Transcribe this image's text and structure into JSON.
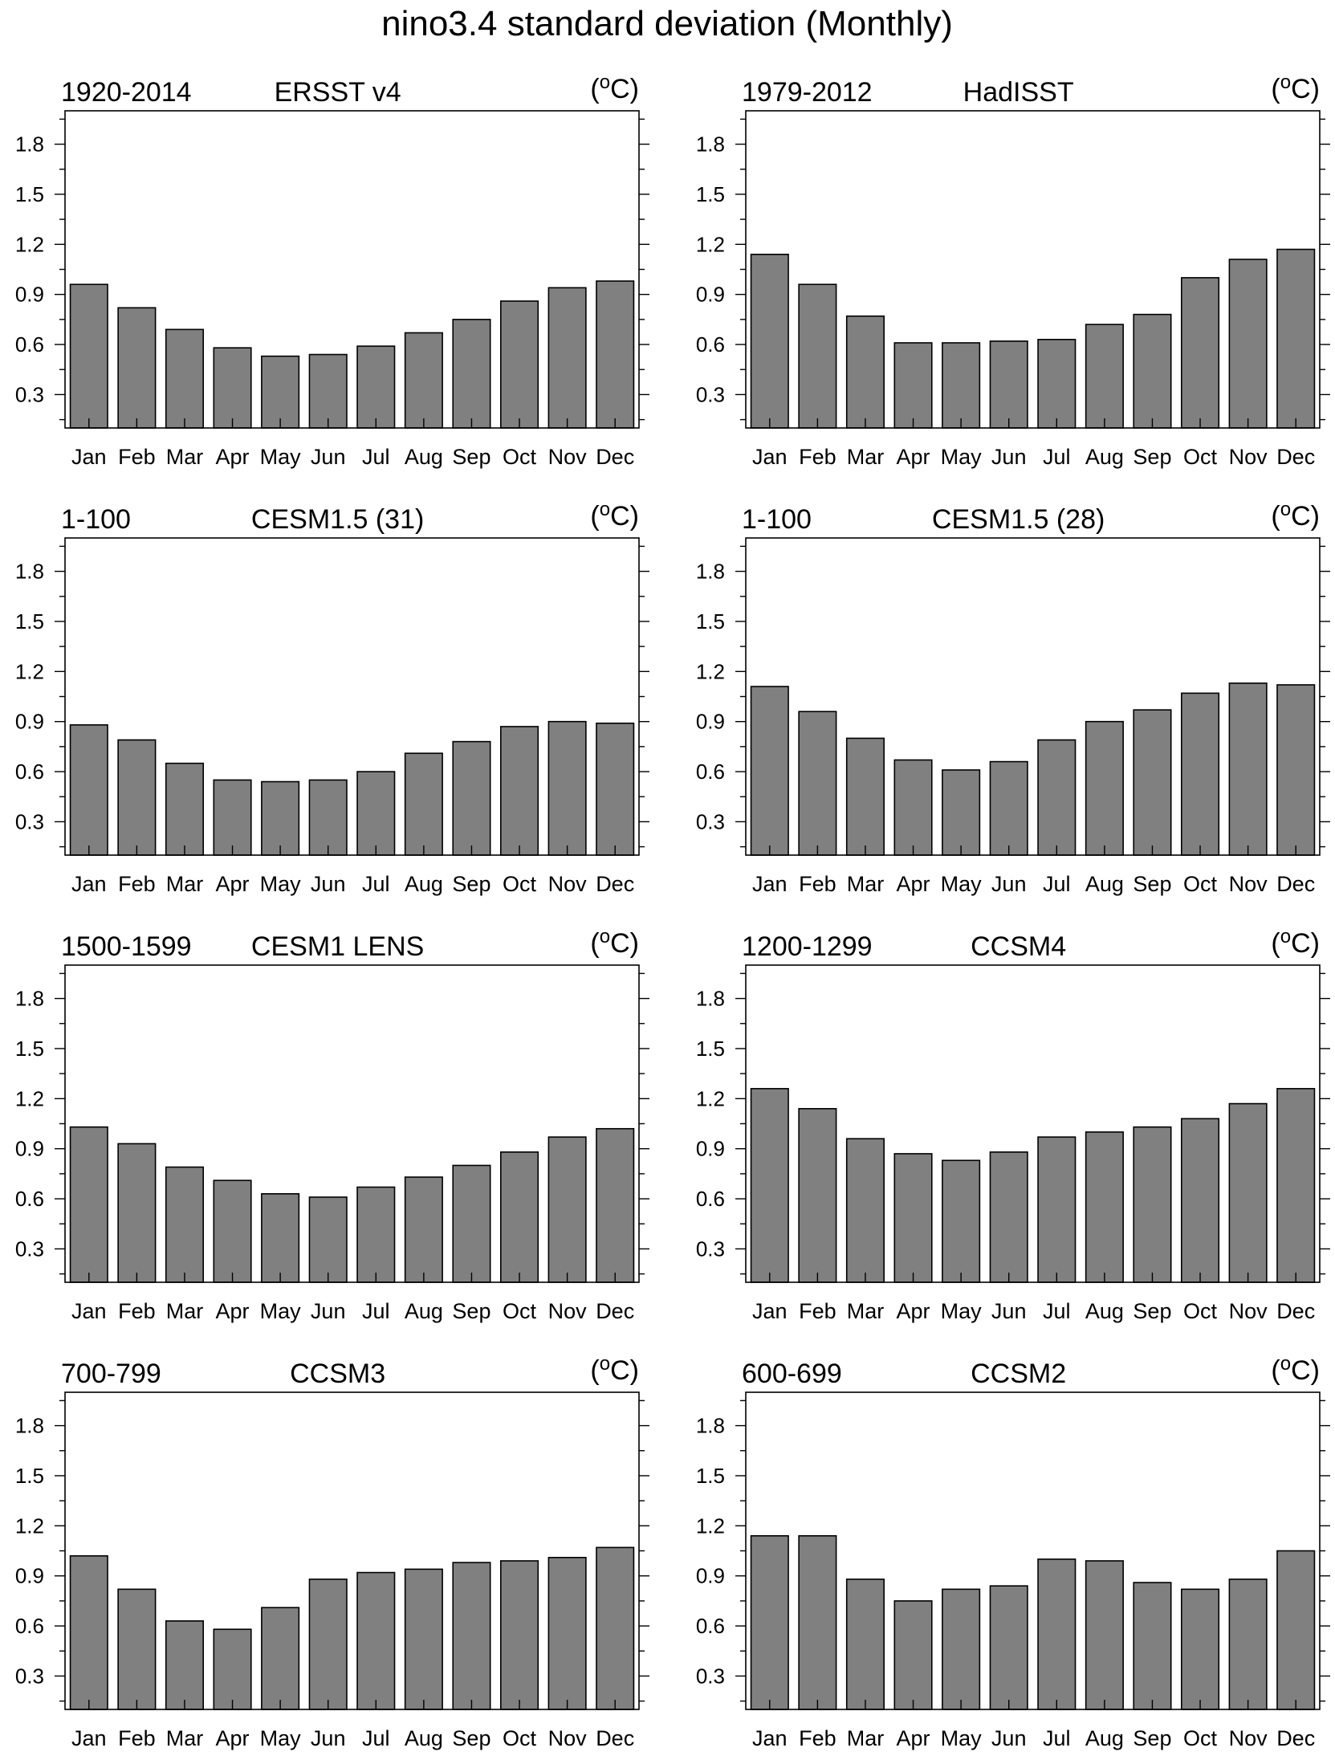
{
  "title": "nino3.4 standard deviation (Monthly)",
  "chart_data": [
    {
      "type": "bar",
      "period": "1920-2014",
      "title": "ERSST v4",
      "unit": "(°C)",
      "unit_sup": "o",
      "unit_letter": "C",
      "categories": [
        "Jan",
        "Feb",
        "Mar",
        "Apr",
        "May",
        "Jun",
        "Jul",
        "Aug",
        "Sep",
        "Oct",
        "Nov",
        "Dec"
      ],
      "values": [
        0.96,
        0.82,
        0.69,
        0.58,
        0.53,
        0.54,
        0.59,
        0.67,
        0.75,
        0.86,
        0.94,
        0.98
      ],
      "ylim": [
        0.1,
        2.0
      ],
      "yticks": [
        0.3,
        0.6,
        0.9,
        1.2,
        1.5,
        1.8
      ]
    },
    {
      "type": "bar",
      "period": "1979-2012",
      "title": "HadISST",
      "unit": "(°C)",
      "unit_sup": "o",
      "unit_letter": "C",
      "categories": [
        "Jan",
        "Feb",
        "Mar",
        "Apr",
        "May",
        "Jun",
        "Jul",
        "Aug",
        "Sep",
        "Oct",
        "Nov",
        "Dec"
      ],
      "values": [
        1.14,
        0.96,
        0.77,
        0.61,
        0.61,
        0.62,
        0.63,
        0.72,
        0.78,
        1.0,
        1.11,
        1.17
      ],
      "ylim": [
        0.1,
        2.0
      ],
      "yticks": [
        0.3,
        0.6,
        0.9,
        1.2,
        1.5,
        1.8
      ]
    },
    {
      "type": "bar",
      "period": "1-100",
      "title": "CESM1.5 (31)",
      "unit": "(°C)",
      "unit_sup": "o",
      "unit_letter": "C",
      "categories": [
        "Jan",
        "Feb",
        "Mar",
        "Apr",
        "May",
        "Jun",
        "Jul",
        "Aug",
        "Sep",
        "Oct",
        "Nov",
        "Dec"
      ],
      "values": [
        0.88,
        0.79,
        0.65,
        0.55,
        0.54,
        0.55,
        0.6,
        0.71,
        0.78,
        0.87,
        0.9,
        0.89
      ],
      "ylim": [
        0.1,
        2.0
      ],
      "yticks": [
        0.3,
        0.6,
        0.9,
        1.2,
        1.5,
        1.8
      ]
    },
    {
      "type": "bar",
      "period": "1-100",
      "title": "CESM1.5 (28)",
      "unit": "(°C)",
      "unit_sup": "o",
      "unit_letter": "C",
      "categories": [
        "Jan",
        "Feb",
        "Mar",
        "Apr",
        "May",
        "Jun",
        "Jul",
        "Aug",
        "Sep",
        "Oct",
        "Nov",
        "Dec"
      ],
      "values": [
        1.11,
        0.96,
        0.8,
        0.67,
        0.61,
        0.66,
        0.79,
        0.9,
        0.97,
        1.07,
        1.13,
        1.12
      ],
      "ylim": [
        0.1,
        2.0
      ],
      "yticks": [
        0.3,
        0.6,
        0.9,
        1.2,
        1.5,
        1.8
      ]
    },
    {
      "type": "bar",
      "period": "1500-1599",
      "title": "CESM1 LENS",
      "unit": "(°C)",
      "unit_sup": "o",
      "unit_letter": "C",
      "categories": [
        "Jan",
        "Feb",
        "Mar",
        "Apr",
        "May",
        "Jun",
        "Jul",
        "Aug",
        "Sep",
        "Oct",
        "Nov",
        "Dec"
      ],
      "values": [
        1.03,
        0.93,
        0.79,
        0.71,
        0.63,
        0.61,
        0.67,
        0.73,
        0.8,
        0.88,
        0.97,
        1.02
      ],
      "ylim": [
        0.1,
        2.0
      ],
      "yticks": [
        0.3,
        0.6,
        0.9,
        1.2,
        1.5,
        1.8
      ]
    },
    {
      "type": "bar",
      "period": "1200-1299",
      "title": "CCSM4",
      "unit": "(°C)",
      "unit_sup": "o",
      "unit_letter": "C",
      "categories": [
        "Jan",
        "Feb",
        "Mar",
        "Apr",
        "May",
        "Jun",
        "Jul",
        "Aug",
        "Sep",
        "Oct",
        "Nov",
        "Dec"
      ],
      "values": [
        1.26,
        1.14,
        0.96,
        0.87,
        0.83,
        0.88,
        0.97,
        1.0,
        1.03,
        1.08,
        1.17,
        1.26
      ],
      "ylim": [
        0.1,
        2.0
      ],
      "yticks": [
        0.3,
        0.6,
        0.9,
        1.2,
        1.5,
        1.8
      ]
    },
    {
      "type": "bar",
      "period": "700-799",
      "title": "CCSM3",
      "unit": "(°C)",
      "unit_sup": "o",
      "unit_letter": "C",
      "categories": [
        "Jan",
        "Feb",
        "Mar",
        "Apr",
        "May",
        "Jun",
        "Jul",
        "Aug",
        "Sep",
        "Oct",
        "Nov",
        "Dec"
      ],
      "values": [
        1.02,
        0.82,
        0.63,
        0.58,
        0.71,
        0.88,
        0.92,
        0.94,
        0.98,
        0.99,
        1.01,
        1.07
      ],
      "ylim": [
        0.1,
        2.0
      ],
      "yticks": [
        0.3,
        0.6,
        0.9,
        1.2,
        1.5,
        1.8
      ]
    },
    {
      "type": "bar",
      "period": "600-699",
      "title": "CCSM2",
      "unit": "(°C)",
      "unit_sup": "o",
      "unit_letter": "C",
      "categories": [
        "Jan",
        "Feb",
        "Mar",
        "Apr",
        "May",
        "Jun",
        "Jul",
        "Aug",
        "Sep",
        "Oct",
        "Nov",
        "Dec"
      ],
      "values": [
        1.14,
        1.14,
        0.88,
        0.75,
        0.82,
        0.84,
        1.0,
        0.99,
        0.86,
        0.82,
        0.88,
        1.05
      ],
      "ylim": [
        0.1,
        2.0
      ],
      "yticks": [
        0.3,
        0.6,
        0.9,
        1.2,
        1.5,
        1.8
      ]
    }
  ]
}
